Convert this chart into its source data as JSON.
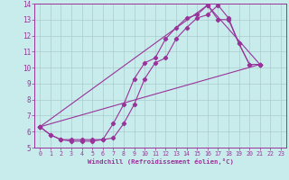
{
  "xlabel": "Windchill (Refroidissement éolien,°C)",
  "bg_color": "#c8ecec",
  "line_color": "#993399",
  "grid_color": "#aacccc",
  "xlim": [
    -0.5,
    23.5
  ],
  "ylim": [
    5,
    14
  ],
  "xticks": [
    0,
    1,
    2,
    3,
    4,
    5,
    6,
    7,
    8,
    9,
    10,
    11,
    12,
    13,
    14,
    15,
    16,
    17,
    18,
    19,
    20,
    21,
    22,
    23
  ],
  "yticks": [
    5,
    6,
    7,
    8,
    9,
    10,
    11,
    12,
    13,
    14
  ],
  "line1_x": [
    0,
    1,
    2,
    3,
    4,
    5,
    6,
    7,
    8,
    9,
    10,
    11,
    12,
    13,
    14,
    15,
    16,
    17,
    18,
    19,
    20,
    21
  ],
  "line1_y": [
    6.3,
    5.8,
    5.5,
    5.4,
    5.4,
    5.4,
    5.5,
    5.6,
    6.5,
    7.7,
    9.3,
    10.3,
    10.6,
    11.8,
    12.5,
    13.1,
    13.3,
    13.9,
    13.1,
    11.5,
    10.2,
    10.2
  ],
  "line2_x": [
    0,
    1,
    2,
    3,
    4,
    5,
    6,
    7,
    8,
    9,
    10,
    11,
    12,
    13,
    14,
    15,
    16,
    17,
    18,
    19,
    20,
    21
  ],
  "line2_y": [
    6.3,
    5.8,
    5.5,
    5.5,
    5.5,
    5.5,
    5.5,
    6.5,
    7.7,
    9.3,
    10.3,
    10.6,
    11.8,
    12.5,
    13.1,
    13.3,
    13.9,
    13.0,
    13.0,
    11.5,
    10.2,
    10.2
  ],
  "line3_x": [
    0,
    21
  ],
  "line3_y": [
    6.3,
    10.2
  ],
  "line4_x": [
    0,
    16,
    21
  ],
  "line4_y": [
    6.3,
    13.9,
    10.2
  ]
}
